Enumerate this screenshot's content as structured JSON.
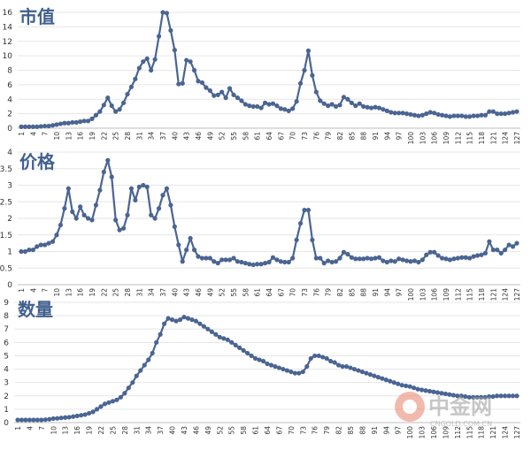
{
  "chart_data": [
    {
      "type": "line",
      "title": "市值",
      "ylim": [
        0,
        16
      ],
      "yticks": [
        0,
        2,
        4,
        6,
        8,
        10,
        12,
        14,
        16
      ],
      "xtick_labels": [
        "1",
        "4",
        "7",
        "10",
        "13",
        "16",
        "19",
        "22",
        "25",
        "28",
        "31",
        "34",
        "37",
        "40",
        "43",
        "46",
        "49",
        "52",
        "55",
        "58",
        "61",
        "64",
        "67",
        "70",
        "73",
        "76",
        "79",
        "82",
        "85",
        "88",
        "91",
        "94",
        "97",
        "100",
        "103",
        "106",
        "109",
        "112",
        "115",
        "118",
        "121",
        "124",
        "127"
      ],
      "grid": true,
      "color": "#4a6592",
      "values": [
        0.2,
        0.2,
        0.2,
        0.2,
        0.2,
        0.25,
        0.3,
        0.3,
        0.4,
        0.5,
        0.6,
        0.7,
        0.7,
        0.8,
        0.8,
        0.9,
        1.0,
        1.0,
        1.3,
        1.8,
        2.3,
        3.2,
        4.2,
        3.1,
        2.3,
        2.6,
        3.5,
        4.7,
        5.7,
        6.8,
        8.3,
        9.2,
        9.6,
        8.0,
        9.5,
        12.7,
        16.0,
        15.9,
        13.5,
        10.8,
        6.1,
        6.2,
        9.4,
        9.2,
        8.0,
        6.5,
        6.3,
        5.6,
        5.2,
        4.5,
        4.6,
        5.0,
        4.2,
        5.5,
        4.6,
        4.2,
        3.8,
        3.3,
        3.1,
        3.0,
        3.0,
        2.8,
        3.5,
        3.3,
        3.4,
        3.1,
        2.7,
        2.6,
        2.4,
        2.7,
        3.7,
        6.2,
        8.0,
        10.7,
        7.3,
        5.0,
        3.8,
        3.4,
        3.1,
        3.3,
        3.0,
        3.2,
        4.3,
        4.0,
        3.5,
        3.1,
        3.4,
        3.0,
        2.9,
        2.8,
        2.9,
        2.8,
        2.6,
        2.4,
        2.2,
        2.1,
        2.1,
        2.1,
        2.0,
        1.9,
        1.8,
        1.7,
        1.8,
        2.0,
        2.2,
        2.1,
        1.9,
        1.8,
        1.7,
        1.6,
        1.7,
        1.7,
        1.7,
        1.6,
        1.6,
        1.7,
        1.7,
        1.8,
        1.8,
        2.3,
        2.3,
        2.0,
        2.0,
        2.0,
        2.1,
        2.2,
        2.3
      ]
    },
    {
      "type": "line",
      "title": "价格",
      "ylim": [
        0,
        4
      ],
      "yticks": [
        0,
        0.5,
        1,
        1.5,
        2,
        2.5,
        3,
        3.5,
        4
      ],
      "xtick_labels": [
        "1",
        "4",
        "7",
        "10",
        "13",
        "16",
        "19",
        "22",
        "25",
        "28",
        "31",
        "34",
        "37",
        "40",
        "43",
        "46",
        "49",
        "52",
        "55",
        "58",
        "61",
        "64",
        "67",
        "70",
        "73",
        "76",
        "79",
        "82",
        "85",
        "88",
        "91",
        "94",
        "97",
        "100",
        "103",
        "106",
        "109",
        "112",
        "115",
        "118",
        "121",
        "124",
        "127"
      ],
      "grid": true,
      "color": "#4a6592",
      "values": [
        1.0,
        1.0,
        1.05,
        1.05,
        1.15,
        1.2,
        1.2,
        1.25,
        1.3,
        1.5,
        1.8,
        2.3,
        2.9,
        2.2,
        2.0,
        2.35,
        2.1,
        2.0,
        1.95,
        2.4,
        2.85,
        3.4,
        3.75,
        3.25,
        1.95,
        1.65,
        1.7,
        2.1,
        2.9,
        2.55,
        2.95,
        3.0,
        2.95,
        2.1,
        2.0,
        2.3,
        2.7,
        2.9,
        2.4,
        1.75,
        1.2,
        0.7,
        1.05,
        1.4,
        1.05,
        0.85,
        0.8,
        0.8,
        0.8,
        0.7,
        0.65,
        0.75,
        0.75,
        0.75,
        0.8,
        0.7,
        0.68,
        0.65,
        0.62,
        0.6,
        0.62,
        0.62,
        0.65,
        0.68,
        0.82,
        0.75,
        0.7,
        0.68,
        0.68,
        0.8,
        1.35,
        1.85,
        2.25,
        2.25,
        1.35,
        0.8,
        0.8,
        0.65,
        0.72,
        0.68,
        0.7,
        0.8,
        0.98,
        0.92,
        0.82,
        0.78,
        0.78,
        0.78,
        0.8,
        0.78,
        0.8,
        0.82,
        0.72,
        0.68,
        0.72,
        0.7,
        0.78,
        0.75,
        0.72,
        0.7,
        0.72,
        0.68,
        0.75,
        0.9,
        0.98,
        0.98,
        0.88,
        0.8,
        0.78,
        0.75,
        0.78,
        0.8,
        0.82,
        0.82,
        0.8,
        0.85,
        0.88,
        0.9,
        0.95,
        1.3,
        1.05,
        1.05,
        0.95,
        1.05,
        1.2,
        1.15,
        1.25
      ]
    },
    {
      "type": "line",
      "title": "数量",
      "ylim": [
        0,
        9
      ],
      "yticks": [
        0,
        1,
        2,
        3,
        4,
        5,
        6,
        7,
        8,
        9
      ],
      "xtick_labels": [
        "1",
        "4",
        "7",
        "10",
        "13",
        "16",
        "19",
        "22",
        "25",
        "28",
        "31",
        "34",
        "37",
        "40",
        "43",
        "46",
        "49",
        "52",
        "55",
        "58",
        "61",
        "64",
        "67",
        "70",
        "73",
        "76",
        "79",
        "82",
        "85",
        "88",
        "91",
        "94",
        "97",
        "100",
        "103",
        "106",
        "109",
        "112",
        "115",
        "118",
        "121",
        "124",
        "127"
      ],
      "grid": true,
      "color": "#4a6592",
      "values": [
        0.2,
        0.2,
        0.2,
        0.2,
        0.2,
        0.2,
        0.2,
        0.22,
        0.25,
        0.3,
        0.32,
        0.35,
        0.38,
        0.4,
        0.45,
        0.5,
        0.55,
        0.6,
        0.7,
        0.8,
        1.0,
        1.2,
        1.4,
        1.5,
        1.6,
        1.7,
        1.9,
        2.2,
        2.6,
        3.0,
        3.5,
        3.9,
        4.3,
        4.7,
        5.2,
        6.0,
        6.6,
        7.4,
        7.8,
        7.7,
        7.6,
        7.7,
        7.9,
        7.8,
        7.7,
        7.6,
        7.4,
        7.2,
        7.0,
        6.8,
        6.6,
        6.4,
        6.3,
        6.2,
        6.0,
        5.8,
        5.6,
        5.4,
        5.2,
        5.0,
        4.8,
        4.7,
        4.6,
        4.4,
        4.3,
        4.2,
        4.1,
        4.0,
        3.9,
        3.8,
        3.7,
        3.7,
        3.8,
        4.2,
        4.8,
        5.0,
        5.0,
        4.9,
        4.8,
        4.6,
        4.5,
        4.3,
        4.2,
        4.2,
        4.1,
        4.0,
        3.9,
        3.8,
        3.7,
        3.6,
        3.5,
        3.4,
        3.3,
        3.2,
        3.1,
        3.0,
        2.9,
        2.8,
        2.75,
        2.7,
        2.6,
        2.5,
        2.45,
        2.4,
        2.35,
        2.3,
        2.25,
        2.2,
        2.15,
        2.1,
        2.05,
        2.0,
        2.0,
        1.95,
        1.9,
        1.9,
        1.9,
        1.9,
        1.9,
        1.95,
        1.95,
        2.0,
        2.0,
        2.0,
        2.0,
        2.0,
        2.0
      ]
    }
  ],
  "watermark": {
    "brand": "中金网",
    "url": "CNGOLD.COM.CN",
    "logo_color": "#e8826b"
  }
}
